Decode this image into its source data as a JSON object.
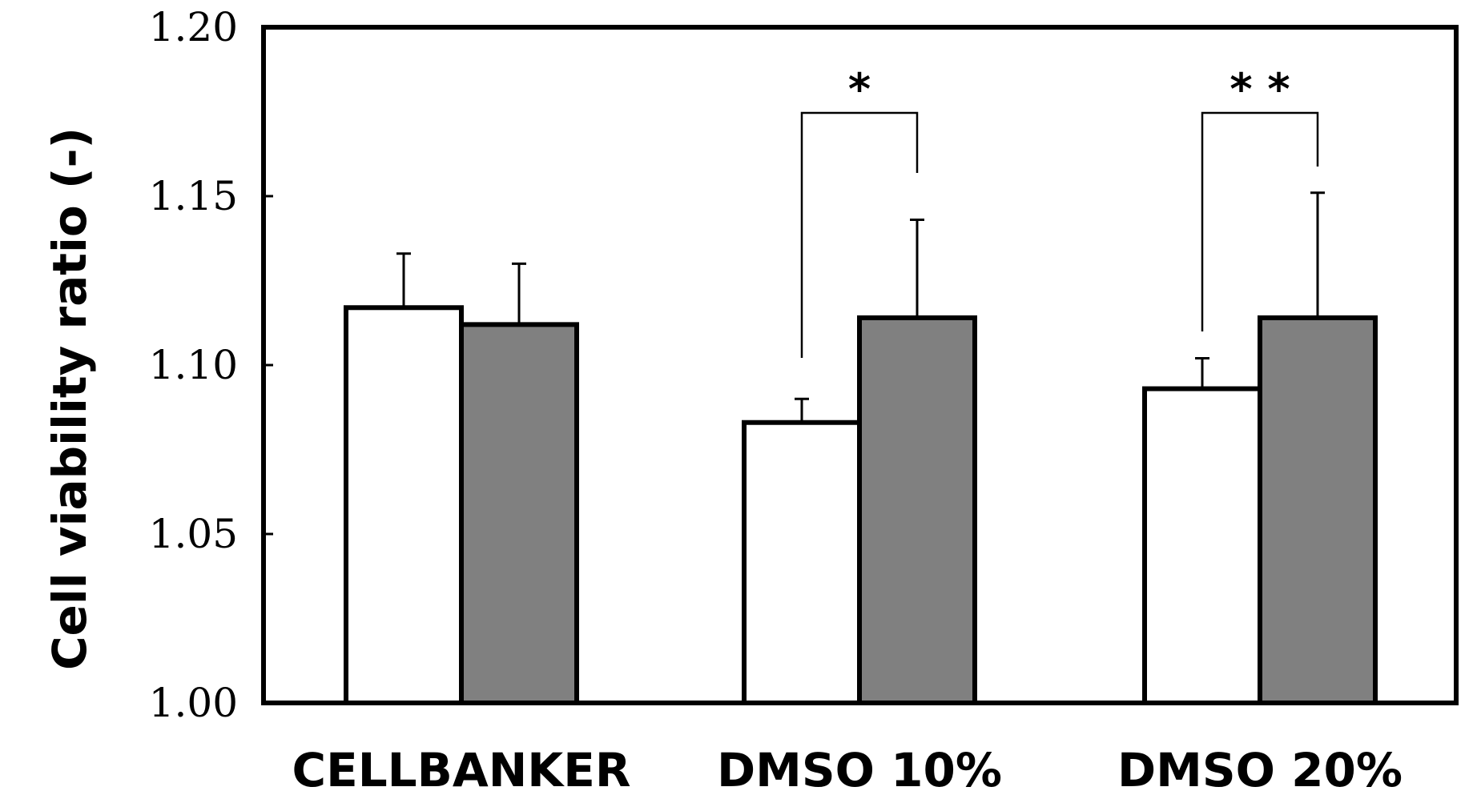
{
  "chart_data": {
    "type": "bar",
    "title": "",
    "xlabel": "",
    "ylabel": "Cell viability ratio (-)",
    "ylim": [
      1.0,
      1.2
    ],
    "yticks": [
      "1.00",
      "1.05",
      "1.10",
      "1.15",
      "1.20"
    ],
    "grid": false,
    "categories": [
      "CELLBANKER",
      "DMSO 10%",
      "DMSO 20%"
    ],
    "series": [
      {
        "color": "#ffffff",
        "values": [
          1.117,
          1.083,
          1.093
        ],
        "errors": [
          0.016,
          0.007,
          0.009
        ]
      },
      {
        "color": "#808080",
        "values": [
          1.112,
          1.114,
          1.114
        ],
        "errors": [
          0.018,
          0.029,
          0.037
        ]
      }
    ],
    "significance": [
      {
        "category_index": 1,
        "label": "*"
      },
      {
        "category_index": 2,
        "label": "* *"
      }
    ]
  }
}
